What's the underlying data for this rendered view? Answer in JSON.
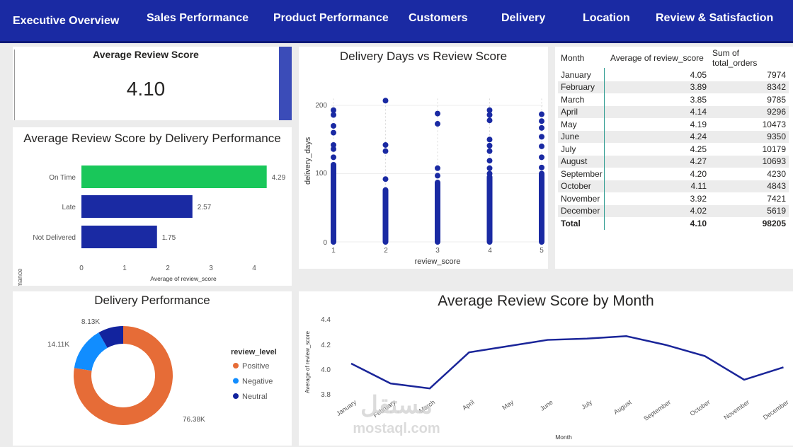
{
  "nav": {
    "tabs": [
      "Executive Overview",
      "Sales Performance",
      "Product Performance",
      "Customers",
      "Delivery",
      "Location",
      "Review & Satisfaction"
    ]
  },
  "kpi": {
    "title": "Average Review Score",
    "value": "4.10"
  },
  "bar_chart": {
    "title": "Average Review Score by Delivery Performance",
    "ylabel": "delivery_performance",
    "xlabel": "Average of review_score",
    "xticks": [
      "0",
      "1",
      "2",
      "3",
      "4"
    ]
  },
  "scatter_chart": {
    "title": "Delivery Days vs Review Score",
    "ylabel": "delivery_days",
    "xlabel": "review_score",
    "yticks": [
      "0",
      "100",
      "200"
    ],
    "xticks": [
      "1",
      "2",
      "3",
      "4",
      "5"
    ]
  },
  "donut_chart": {
    "title": "Delivery Performance",
    "legend_title": "review_level"
  },
  "line_chart": {
    "title": "Average Review Score by Month",
    "ylabel": "Average of review_score",
    "xlabel": "Month",
    "yticks": [
      "3.8",
      "4.0",
      "4.2",
      "4.4"
    ]
  },
  "table": {
    "headers": [
      "Month",
      "Average of review_score",
      "Sum of total_orders"
    ],
    "rows": [
      [
        "January",
        "4.05",
        "7974"
      ],
      [
        "February",
        "3.89",
        "8342"
      ],
      [
        "March",
        "3.85",
        "9785"
      ],
      [
        "April",
        "4.14",
        "9296"
      ],
      [
        "May",
        "4.19",
        "10473"
      ],
      [
        "June",
        "4.24",
        "9350"
      ],
      [
        "July",
        "4.25",
        "10179"
      ],
      [
        "August",
        "4.27",
        "10693"
      ],
      [
        "September",
        "4.20",
        "4230"
      ],
      [
        "October",
        "4.11",
        "4843"
      ],
      [
        "November",
        "3.92",
        "7421"
      ],
      [
        "December",
        "4.02",
        "5619"
      ]
    ],
    "total": [
      "Total",
      "4.10",
      "98205"
    ]
  },
  "watermark": {
    "logo_text": "مستقل",
    "url_text": "mostaql.com"
  },
  "colors": {
    "nav": "#1a2aa3",
    "bar_blue": "#1a2aa3",
    "bar_green": "#19c75a",
    "positive": "#e66c37",
    "negative": "#118dff",
    "neutral": "#12239e",
    "scatter": "#1a2aa3"
  },
  "chart_data": [
    {
      "type": "bar",
      "title": "Average Review Score by Delivery Performance",
      "categories": [
        "On Time",
        "Late",
        "Not Delivered"
      ],
      "values": [
        4.29,
        2.57,
        1.75
      ],
      "data_labels": [
        "4.29",
        "2.57",
        "1.75"
      ],
      "xlabel": "Average of review_score",
      "ylabel": "delivery_performance",
      "xlim": [
        0,
        4.4
      ],
      "orientation": "horizontal",
      "grid": false
    },
    {
      "type": "scatter",
      "title": "Delivery Days vs Review Score",
      "xlabel": "review_score",
      "ylabel": "delivery_days",
      "xlim": [
        1,
        5
      ],
      "ylim": [
        0,
        210
      ],
      "points": [
        {
          "x": 1,
          "y": 193
        },
        {
          "x": 1,
          "y": 186
        },
        {
          "x": 1,
          "y": 170
        },
        {
          "x": 1,
          "y": 160
        },
        {
          "x": 1,
          "y": 142
        },
        {
          "x": 1,
          "y": 136
        },
        {
          "x": 1,
          "y": 124
        },
        {
          "x": 1,
          "y": 112
        },
        {
          "x": 2,
          "y": 207
        },
        {
          "x": 2,
          "y": 142
        },
        {
          "x": 2,
          "y": 133
        },
        {
          "x": 2,
          "y": 92
        },
        {
          "x": 3,
          "y": 188
        },
        {
          "x": 3,
          "y": 173
        },
        {
          "x": 3,
          "y": 108
        },
        {
          "x": 3,
          "y": 97
        },
        {
          "x": 3,
          "y": 87
        },
        {
          "x": 4,
          "y": 193
        },
        {
          "x": 4,
          "y": 186
        },
        {
          "x": 4,
          "y": 178
        },
        {
          "x": 4,
          "y": 150
        },
        {
          "x": 4,
          "y": 141
        },
        {
          "x": 4,
          "y": 133
        },
        {
          "x": 4,
          "y": 119
        },
        {
          "x": 4,
          "y": 108
        },
        {
          "x": 4,
          "y": 100
        },
        {
          "x": 4,
          "y": 93
        },
        {
          "x": 5,
          "y": 187
        },
        {
          "x": 5,
          "y": 177
        },
        {
          "x": 5,
          "y": 167
        },
        {
          "x": 5,
          "y": 154
        },
        {
          "x": 5,
          "y": 140
        },
        {
          "x": 5,
          "y": 124
        },
        {
          "x": 5,
          "y": 109
        },
        {
          "x": 5,
          "y": 95
        }
      ],
      "dense_columns": [
        {
          "x": 1,
          "y_min": 0,
          "y_max": 113
        },
        {
          "x": 2,
          "y_min": 0,
          "y_max": 76
        },
        {
          "x": 3,
          "y_min": 0,
          "y_max": 86
        },
        {
          "x": 4,
          "y_min": 0,
          "y_max": 95
        },
        {
          "x": 5,
          "y_min": 0,
          "y_max": 100
        }
      ],
      "grid": true
    },
    {
      "type": "pie",
      "title": "Delivery Performance",
      "legend_title": "review_level",
      "legend_placement": "right",
      "slices": [
        {
          "label": "Positive",
          "value": 76.38,
          "display": "76.38K",
          "color": "#e66c37"
        },
        {
          "label": "Negative",
          "value": 14.11,
          "display": "14.11K",
          "color": "#118dff"
        },
        {
          "label": "Neutral",
          "value": 8.13,
          "display": "8.13K",
          "color": "#12239e"
        }
      ]
    },
    {
      "type": "line",
      "title": "Average Review Score by Month",
      "xlabel": "Month",
      "ylabel": "Average of review_score",
      "categories": [
        "January",
        "February",
        "March",
        "April",
        "May",
        "June",
        "July",
        "August",
        "September",
        "October",
        "November",
        "December"
      ],
      "values": [
        4.05,
        3.89,
        3.85,
        4.14,
        4.19,
        4.24,
        4.25,
        4.27,
        4.2,
        4.11,
        3.92,
        4.02
      ],
      "ylim": [
        3.8,
        4.4
      ],
      "grid": false
    }
  ]
}
